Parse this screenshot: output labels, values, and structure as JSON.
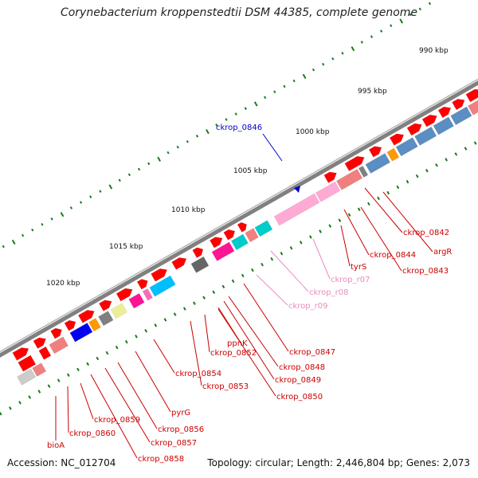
{
  "title": "Corynebacterium kroppenstedtii DSM 44385, complete genome",
  "accession": "Accession: NC_012704",
  "topology": "Topology: circular; Length: 2,446,804 bp; Genes: 2,073",
  "scale_labels": [
    "990 kbp",
    "995 kbp",
    "1000 kbp",
    "1005 kbp",
    "1010 kbp",
    "1015 kbp",
    "1020 kbp"
  ],
  "colors": {
    "backbone": "#808080",
    "tick": "#1a7a1a",
    "forward_cds": "#ff0000",
    "reverse_cds": "#ff0000",
    "rrna": "#ff99cc",
    "steelblue": "#5b8ec2",
    "label_red": "#cc0000",
    "label_pink": "#e88cc0",
    "label_blue": "#0000cc"
  },
  "labels": [
    {
      "text": "ckrop_0846",
      "color": "#0000cc"
    },
    {
      "text": "ckrop_0842",
      "color": "#cc0000"
    },
    {
      "text": "argR",
      "color": "#cc0000"
    },
    {
      "text": "ckrop_0844",
      "color": "#cc0000"
    },
    {
      "text": "ckrop_0843",
      "color": "#cc0000"
    },
    {
      "text": "tyrS",
      "color": "#cc0000"
    },
    {
      "text": "ckrop_r07",
      "color": "#e88cc0"
    },
    {
      "text": "ckrop_r08",
      "color": "#e88cc0"
    },
    {
      "text": "ckrop_r09",
      "color": "#e88cc0"
    },
    {
      "text": "ckrop_0847",
      "color": "#cc0000"
    },
    {
      "text": "ppnK",
      "color": "#cc0000"
    },
    {
      "text": "ckrop_0852",
      "color": "#cc0000"
    },
    {
      "text": "ckrop_0848",
      "color": "#cc0000"
    },
    {
      "text": "ckrop_0849",
      "color": "#cc0000"
    },
    {
      "text": "ckrop_0854",
      "color": "#cc0000"
    },
    {
      "text": "ckrop_0853",
      "color": "#cc0000"
    },
    {
      "text": "ckrop_0850",
      "color": "#cc0000"
    },
    {
      "text": "pyrG",
      "color": "#cc0000"
    },
    {
      "text": "ckrop_0859",
      "color": "#cc0000"
    },
    {
      "text": "ckrop_0856",
      "color": "#cc0000"
    },
    {
      "text": "ckrop_0860",
      "color": "#cc0000"
    },
    {
      "text": "ckrop_0857",
      "color": "#cc0000"
    },
    {
      "text": "bioA",
      "color": "#cc0000"
    },
    {
      "text": "ckrop_0858",
      "color": "#cc0000"
    }
  ]
}
